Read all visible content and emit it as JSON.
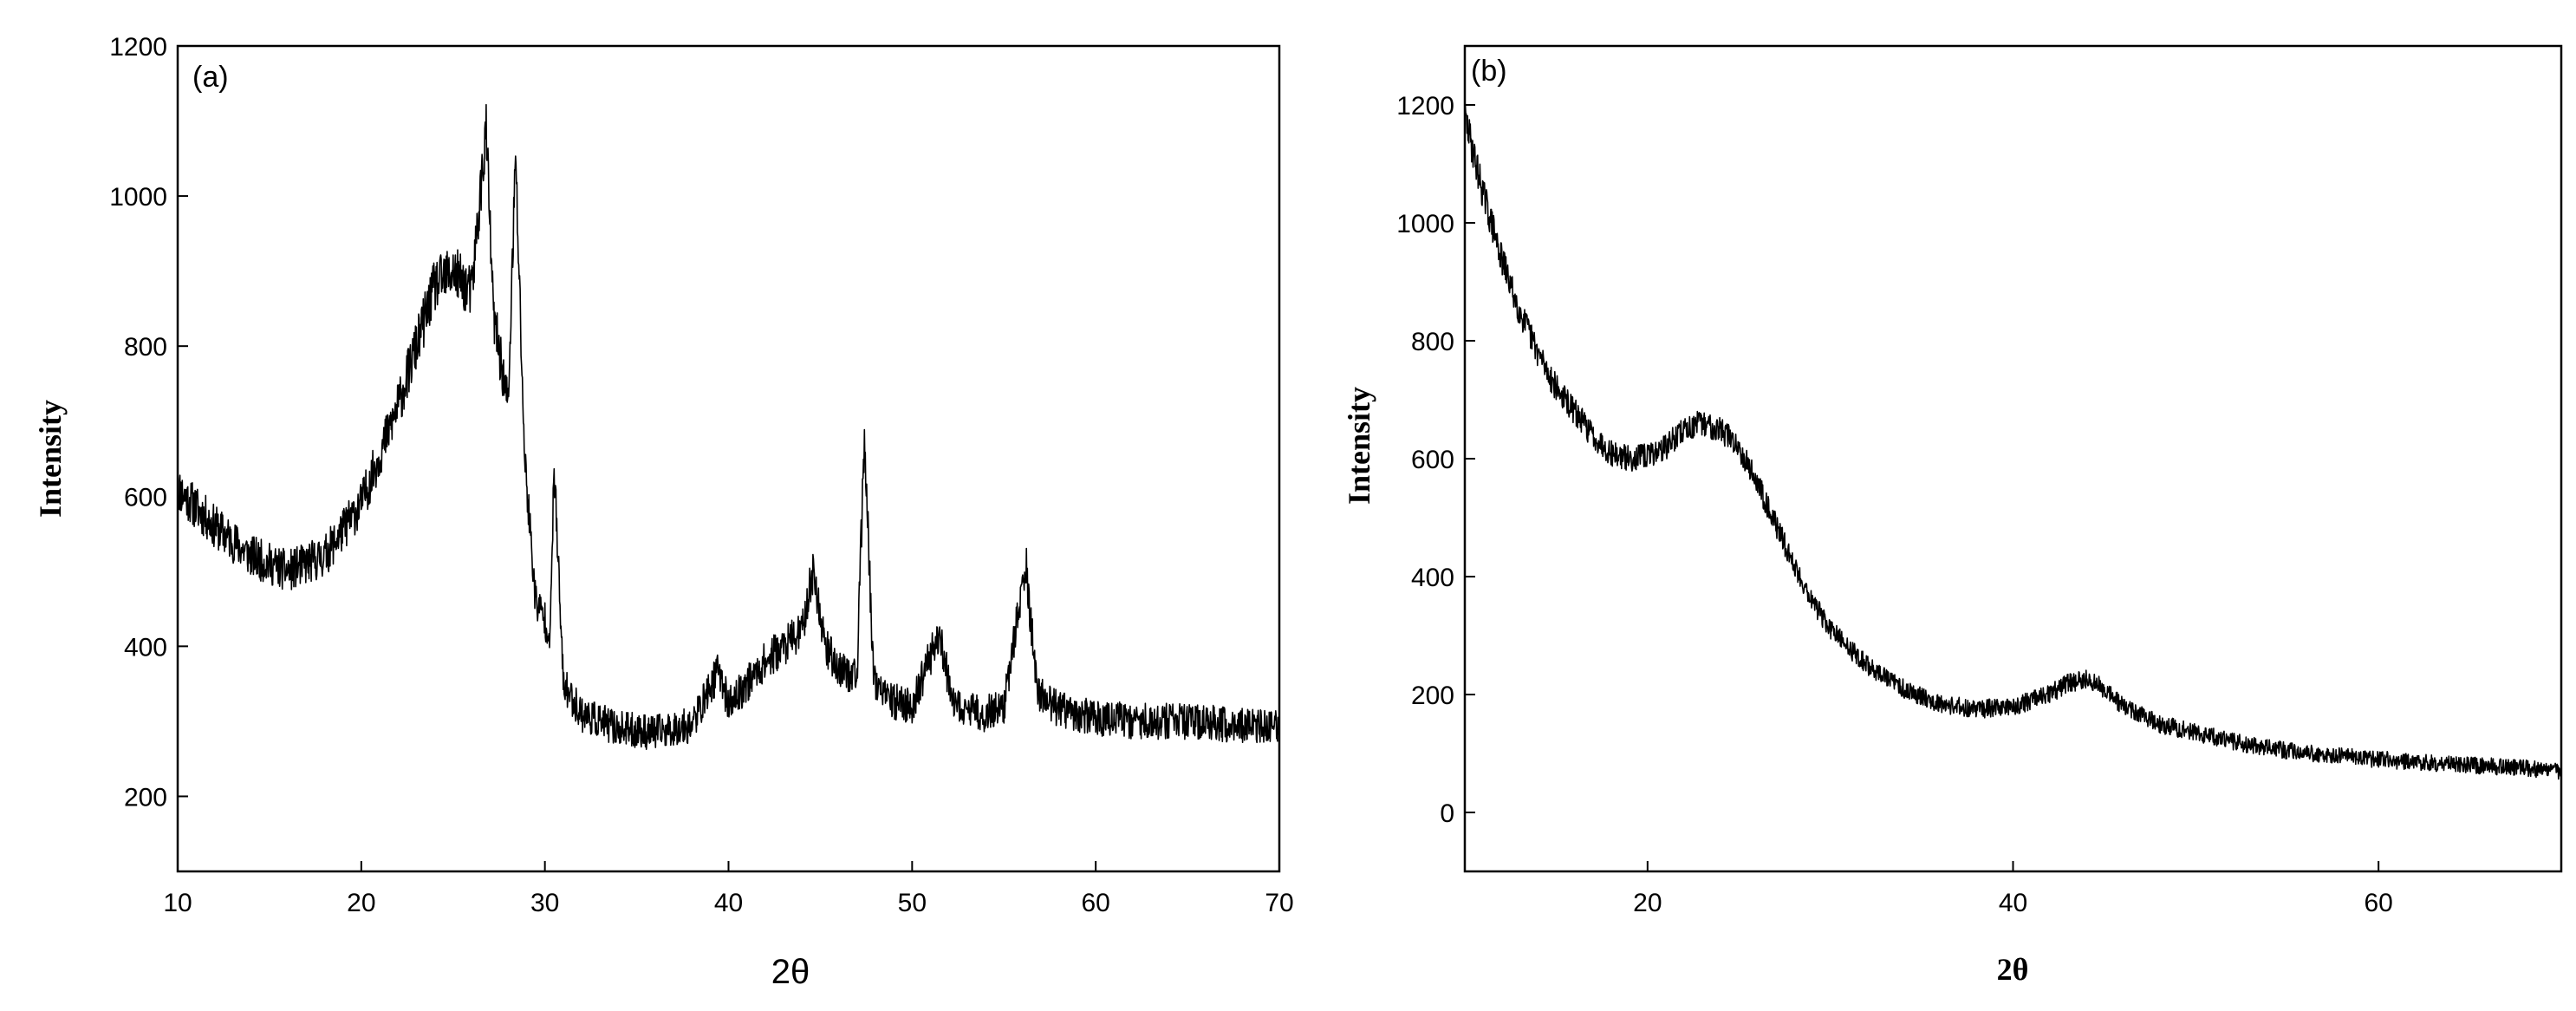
{
  "chart_data": [
    {
      "panel_label": "(a)",
      "type": "line",
      "xlabel": "2θ",
      "ylabel": "Intensity",
      "xlim": [
        10,
        70
      ],
      "ylim": [
        100,
        1200
      ],
      "xticks": [
        10,
        20,
        30,
        40,
        50,
        60,
        70
      ],
      "yticks": [
        200,
        400,
        600,
        800,
        1000,
        1200
      ],
      "xtick_labels": [
        "10",
        "20",
        "30",
        "40",
        "50",
        "60",
        "70"
      ],
      "ytick_labels": [
        "200",
        "400",
        "600",
        "800",
        "1000",
        "1200"
      ],
      "grid": false,
      "color": "#000000",
      "noise": 30,
      "series": [
        {
          "x": [
            10,
            12,
            14,
            16,
            18,
            20,
            22,
            24,
            25,
            26,
            26.8,
            27.2,
            28.0,
            28.4,
            28.9,
            29.5,
            30.3,
            30.5,
            31,
            32,
            34,
            36,
            38,
            39.5,
            40,
            42,
            44,
            44.6,
            45.3,
            46,
            47,
            47.4,
            47.9,
            48.5,
            50,
            51.5,
            52.2,
            54,
            55,
            56.2,
            56.8,
            58,
            60,
            62,
            64,
            66,
            68,
            70
          ],
          "y": [
            610,
            560,
            520,
            500,
            520,
            590,
            720,
            880,
            900,
            870,
            1090,
            840,
            720,
            1050,
            650,
            460,
            420,
            640,
            350,
            310,
            290,
            285,
            295,
            370,
            320,
            380,
            420,
            500,
            400,
            370,
            360,
            680,
            360,
            330,
            320,
            420,
            320,
            310,
            320,
            510,
            340,
            315,
            305,
            300,
            300,
            298,
            295,
            290
          ]
        }
      ]
    },
    {
      "panel_label": "(b)",
      "type": "line",
      "xlabel": "2θ",
      "ylabel": "Intensity",
      "xlim": [
        10,
        70
      ],
      "ylim": [
        -100,
        1300
      ],
      "xticks": [
        20,
        40,
        60
      ],
      "yticks": [
        0,
        200,
        400,
        600,
        800,
        1000,
        1200
      ],
      "xtick_labels": [
        "20",
        "40",
        "60"
      ],
      "ytick_labels": [
        "0",
        "200",
        "400",
        "600",
        "800",
        "1000",
        "1200"
      ],
      "grid": false,
      "color": "#000000",
      "noise": 22,
      "series": [
        {
          "x": [
            10,
            11,
            12,
            13,
            14,
            15,
            16,
            17,
            18,
            19,
            20,
            21,
            22,
            23,
            24,
            25,
            26,
            27,
            28,
            29,
            30,
            32,
            34,
            36,
            38,
            40,
            42,
            43,
            44,
            45,
            46,
            48,
            50,
            52,
            55,
            58,
            60,
            62,
            65,
            68,
            70
          ],
          "y": [
            1180,
            1050,
            940,
            850,
            780,
            720,
            680,
            640,
            610,
            600,
            605,
            620,
            650,
            660,
            650,
            620,
            560,
            490,
            420,
            360,
            310,
            250,
            210,
            185,
            175,
            180,
            200,
            220,
            225,
            210,
            180,
            150,
            135,
            120,
            105,
            95,
            90,
            85,
            80,
            75,
            70
          ]
        }
      ]
    }
  ]
}
